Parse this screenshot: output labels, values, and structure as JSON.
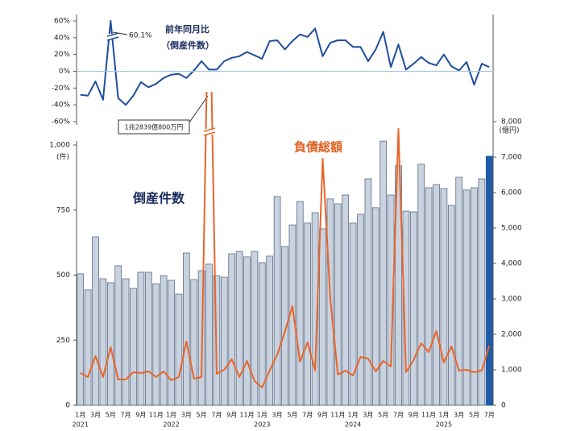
{
  "chart_data": [
    {
      "type": "line",
      "title": "前年同月比",
      "subtitle": "（倒産件数）",
      "ylim": [
        -60,
        60
      ],
      "yticks": [
        {
          "value": -60,
          "label": "-60%"
        },
        {
          "value": -40,
          "label": "-40%"
        },
        {
          "value": -20,
          "label": "-20%"
        },
        {
          "value": 0,
          "label": "0%"
        },
        {
          "value": 20,
          "label": "20%"
        },
        {
          "value": 40,
          "label": "40%"
        },
        {
          "value": 60,
          "label": "60%"
        }
      ],
      "series": [
        {
          "color": "#1f4e9c",
          "values": [
            -28,
            -29,
            -12,
            -34,
            60.1,
            -32,
            -40,
            -29,
            -13,
            -19,
            -15,
            -8,
            -4,
            -3,
            -8,
            1,
            12,
            2,
            2,
            12,
            16,
            18,
            23,
            19,
            15,
            36,
            37,
            26,
            36,
            44,
            41,
            51,
            18,
            34,
            37,
            37,
            29,
            29,
            12,
            26,
            47,
            5,
            32,
            2,
            9,
            17,
            10,
            7,
            20,
            6,
            1,
            11,
            -16,
            9,
            5
          ],
          "value_labels": [
            null,
            null,
            null,
            null,
            "60.1%",
            null,
            null,
            null,
            null,
            null,
            null,
            null,
            null,
            null,
            null,
            null,
            null,
            null,
            null,
            null,
            null,
            null,
            null,
            null,
            null,
            null,
            null,
            null,
            null,
            null,
            null,
            null,
            null,
            null,
            null,
            null,
            null,
            null,
            null,
            null,
            null,
            null,
            null,
            null,
            null,
            null,
            null,
            null,
            null,
            null,
            null,
            null,
            null,
            null,
            null
          ]
        }
      ]
    },
    {
      "type": "bar",
      "categories": [
        "1月",
        null,
        "3月",
        null,
        "5月",
        null,
        "7月",
        null,
        "9月",
        null,
        "11月",
        null,
        "1月",
        null,
        "3月",
        null,
        "5月",
        null,
        "7月",
        null,
        "9月",
        null,
        "11月",
        null,
        "1月",
        null,
        "3月",
        null,
        "5月",
        null,
        "7月",
        null,
        "9月",
        null,
        "11月",
        null,
        "1月",
        null,
        "3月",
        null,
        "5月",
        null,
        "7月",
        null,
        "9月",
        null,
        "11月",
        null,
        "1月",
        null,
        "3月",
        null,
        "5月",
        null,
        "7月"
      ],
      "years": [
        "2021",
        null,
        null,
        null,
        null,
        null,
        null,
        null,
        null,
        null,
        null,
        null,
        "2022",
        null,
        null,
        null,
        null,
        null,
        null,
        null,
        null,
        null,
        null,
        null,
        "2023",
        null,
        null,
        null,
        null,
        null,
        null,
        null,
        null,
        null,
        null,
        null,
        "2024",
        null,
        null,
        null,
        null,
        null,
        null,
        null,
        null,
        null,
        null,
        null,
        "2025",
        null,
        null,
        null,
        null,
        null,
        null
      ],
      "ylim": [
        0,
        1000
      ],
      "yticks": [
        0,
        250,
        500,
        750,
        {
          "value": 1000,
          "label": "1,000"
        }
      ],
      "y_unit": "(件)",
      "y2lim": [
        0,
        8000
      ],
      "y2ticks": [
        0,
        {
          "value": 1000,
          "label": "1,000"
        },
        {
          "value": 2000,
          "label": "2,000"
        },
        {
          "value": 3000,
          "label": "3,000"
        },
        {
          "value": 4000,
          "label": "4,000"
        },
        {
          "value": 5000,
          "label": "5,000"
        },
        {
          "value": 6000,
          "label": "6,000"
        },
        {
          "value": 7000,
          "label": "7,000"
        },
        {
          "value": 8000,
          "label": "8,000"
        }
      ],
      "y2_unit": "(億円)",
      "series": [
        {
          "name": "倒産件数",
          "type": "bar",
          "color": "#c9d3df",
          "edge_color": "#5d6b86",
          "highlight_color": "#1f5ca6",
          "highlight_last": true,
          "values": [
            505,
            443,
            647,
            486,
            471,
            536,
            486,
            449,
            511,
            511,
            467,
            498,
            480,
            427,
            585,
            483,
            517,
            542,
            498,
            492,
            582,
            591,
            570,
            591,
            548,
            573,
            802,
            610,
            693,
            783,
            700,
            740,
            678,
            793,
            774,
            808,
            700,
            734,
            870,
            759,
            1015,
            808,
            920,
            746,
            743,
            926,
            836,
            848,
            833,
            768,
            876,
            827,
            836,
            870,
            957
          ]
        },
        {
          "name": "負債総額",
          "type": "line",
          "axis": "y2",
          "color": "#e8652a",
          "values": [
            909,
            795,
            1386,
            795,
            1636,
            727,
            727,
            932,
            909,
            955,
            795,
            955,
            705,
            795,
            1795,
            750,
            795,
            12839,
            886,
            1000,
            1295,
            795,
            1250,
            682,
            500,
            977,
            1432,
            2068,
            2795,
            1227,
            1773,
            977,
            6955,
            3023,
            864,
            977,
            841,
            1364,
            1318,
            955,
            1250,
            1091,
            7795,
            932,
            1273,
            1750,
            1500,
            2091,
            1205,
            1659,
            977,
            1000,
            932,
            977,
            1682
          ],
          "value_labels": [
            null,
            null,
            null,
            null,
            null,
            null,
            null,
            null,
            null,
            null,
            null,
            null,
            null,
            null,
            null,
            null,
            null,
            "1兆2839億800万円",
            null,
            null,
            null,
            null,
            null,
            null,
            null,
            null,
            null,
            null,
            null,
            null,
            null,
            null,
            null,
            null,
            null,
            null,
            null,
            null,
            null,
            null,
            null,
            null,
            null,
            null,
            null,
            null,
            null,
            null,
            null,
            null,
            null,
            null,
            null,
            null,
            null
          ]
        }
      ]
    }
  ]
}
